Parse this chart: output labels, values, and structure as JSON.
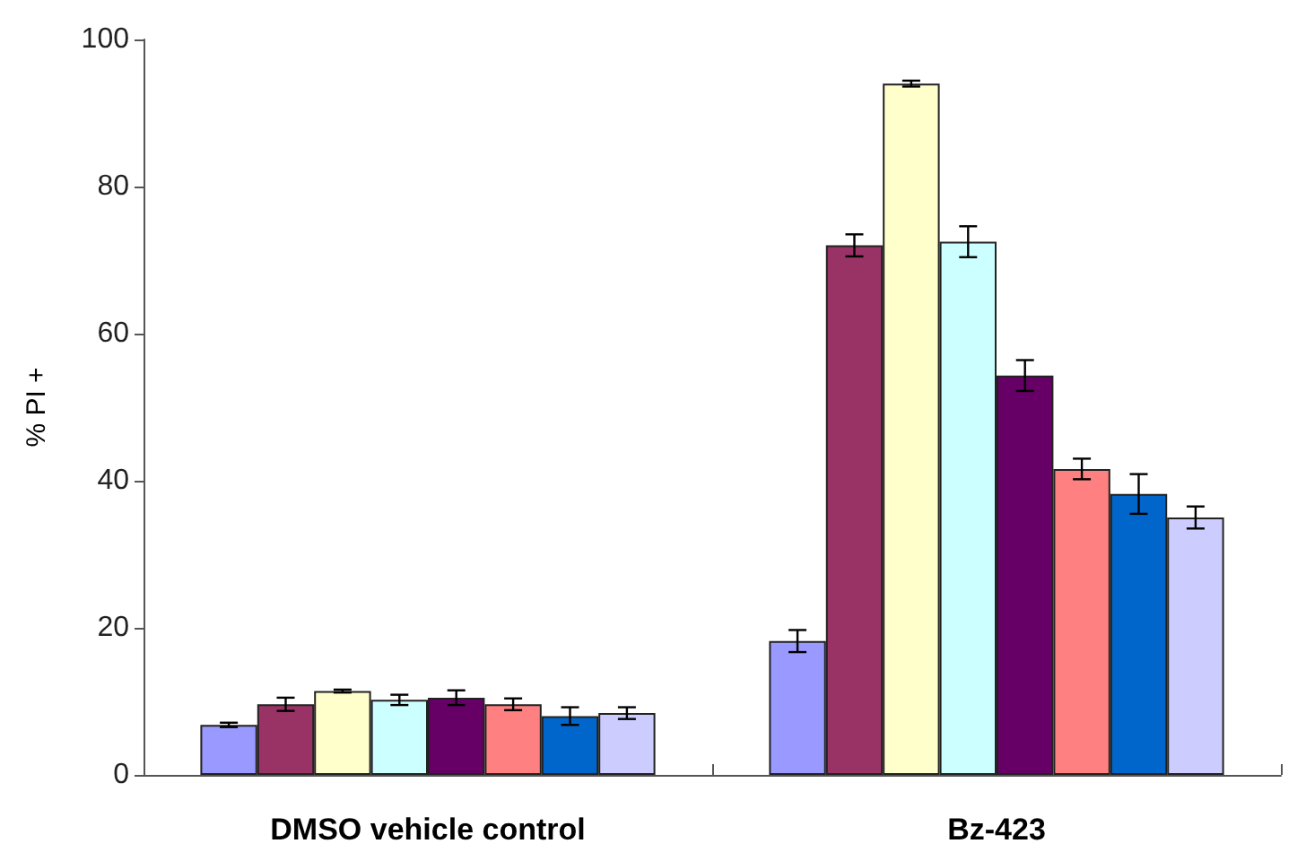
{
  "chart_data": {
    "type": "bar",
    "ylabel": "% PI +",
    "categories": [
      "DMSO vehicle control",
      "Bz-423"
    ],
    "series": [
      {
        "color": "#9999ff",
        "values": [
          6.8,
          18.2
        ],
        "errors": [
          0.3,
          1.5
        ]
      },
      {
        "color": "#993366",
        "values": [
          9.6,
          72.0
        ],
        "errors": [
          0.9,
          1.5
        ]
      },
      {
        "color": "#ffffcc",
        "values": [
          11.4,
          94.0
        ],
        "errors": [
          0.2,
          0.4
        ]
      },
      {
        "color": "#ccffff",
        "values": [
          10.2,
          72.5
        ],
        "errors": [
          0.7,
          2.1
        ]
      },
      {
        "color": "#660066",
        "values": [
          10.5,
          54.3
        ],
        "errors": [
          1.0,
          2.1
        ]
      },
      {
        "color": "#ff8080",
        "values": [
          9.6,
          41.6
        ],
        "errors": [
          0.8,
          1.4
        ]
      },
      {
        "color": "#0066cc",
        "values": [
          8.0,
          38.2
        ],
        "errors": [
          1.2,
          2.7
        ]
      },
      {
        "color": "#ccccff",
        "values": [
          8.4,
          35.0
        ],
        "errors": [
          0.8,
          1.5
        ]
      }
    ],
    "ylim": [
      0,
      100
    ],
    "yticks": [
      0,
      20,
      40,
      60,
      80,
      100
    ],
    "grid": false
  }
}
